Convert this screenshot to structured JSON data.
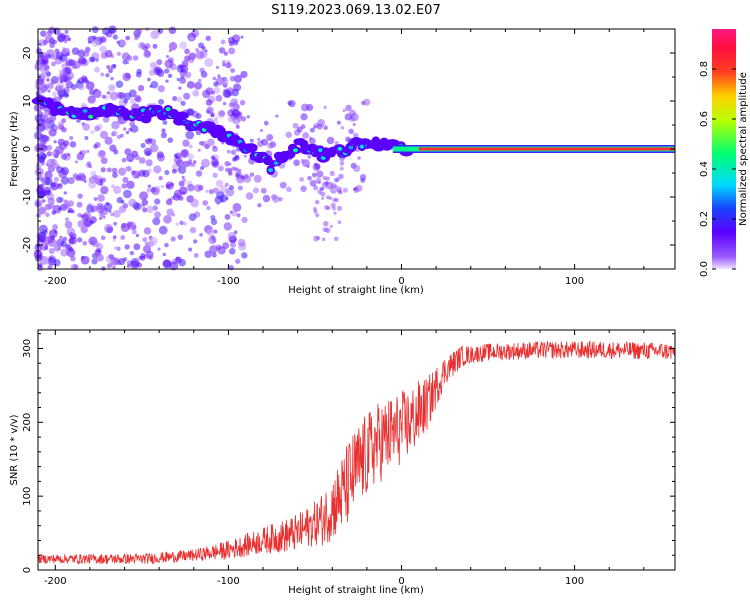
{
  "title": "S119.2023.069.13.02.E07",
  "chart_data": [
    {
      "type": "heatmap",
      "xlabel": "Height of straight line (km)",
      "ylabel": "Frequency (Hz)",
      "xlim": [
        -210,
        158
      ],
      "ylim": [
        -25,
        25
      ],
      "xticks": [
        -200,
        -100,
        0,
        100
      ],
      "yticks": [
        -20,
        -10,
        0,
        10,
        20
      ],
      "colorbar": {
        "label": "Normalized spectral amplitude",
        "range": [
          0,
          0.96
        ],
        "ticks": [
          0.0,
          0.2,
          0.4,
          0.6,
          0.8
        ],
        "colormap": "hsv: purple-blue-cyan-green-yellow-red-pink"
      },
      "ridge": [
        {
          "x": -208,
          "y": 9.5
        },
        {
          "x": -195,
          "y": 8
        },
        {
          "x": -185,
          "y": 7
        },
        {
          "x": -170,
          "y": 8
        },
        {
          "x": -150,
          "y": 7
        },
        {
          "x": -135,
          "y": 8
        },
        {
          "x": -120,
          "y": 5
        },
        {
          "x": -105,
          "y": 3.5
        },
        {
          "x": -95,
          "y": 1
        },
        {
          "x": -85,
          "y": -1
        },
        {
          "x": -75,
          "y": -4
        },
        {
          "x": -70,
          "y": -2
        },
        {
          "x": -60,
          "y": 1
        },
        {
          "x": -50,
          "y": -1
        },
        {
          "x": -40,
          "y": -1.5
        },
        {
          "x": -30,
          "y": 0.5
        },
        {
          "x": -20,
          "y": 1
        },
        {
          "x": -10,
          "y": 0.5
        },
        {
          "x": 0,
          "y": 0.5
        },
        {
          "x": 10,
          "y": 0
        },
        {
          "x": 50,
          "y": 0
        },
        {
          "x": 100,
          "y": 0
        },
        {
          "x": 158,
          "y": 0
        }
      ]
    },
    {
      "type": "line",
      "xlabel": "Height of straight line (km)",
      "ylabel": "SNR (10 * v/v)",
      "xlim": [
        -210,
        158
      ],
      "ylim": [
        0,
        325
      ],
      "xticks": [
        -200,
        -100,
        0,
        100
      ],
      "yticks": [
        0,
        100,
        200,
        300
      ],
      "color": "#e83030",
      "trend": [
        {
          "x": -210,
          "y": 15
        },
        {
          "x": -150,
          "y": 15
        },
        {
          "x": -120,
          "y": 20
        },
        {
          "x": -100,
          "y": 27
        },
        {
          "x": -80,
          "y": 40
        },
        {
          "x": -60,
          "y": 50
        },
        {
          "x": -45,
          "y": 70
        },
        {
          "x": -35,
          "y": 100
        },
        {
          "x": -25,
          "y": 140
        },
        {
          "x": -15,
          "y": 170
        },
        {
          "x": -5,
          "y": 185
        },
        {
          "x": 5,
          "y": 200
        },
        {
          "x": 15,
          "y": 225
        },
        {
          "x": 25,
          "y": 270
        },
        {
          "x": 35,
          "y": 290
        },
        {
          "x": 50,
          "y": 295
        },
        {
          "x": 80,
          "y": 298
        },
        {
          "x": 120,
          "y": 298
        },
        {
          "x": 158,
          "y": 296
        }
      ],
      "noise_amplitude": [
        {
          "x": -210,
          "y": 6
        },
        {
          "x": -120,
          "y": 8
        },
        {
          "x": -80,
          "y": 18
        },
        {
          "x": -50,
          "y": 30
        },
        {
          "x": -30,
          "y": 60
        },
        {
          "x": -10,
          "y": 55
        },
        {
          "x": 10,
          "y": 45
        },
        {
          "x": 25,
          "y": 20
        },
        {
          "x": 40,
          "y": 12
        },
        {
          "x": 158,
          "y": 12
        }
      ]
    }
  ]
}
